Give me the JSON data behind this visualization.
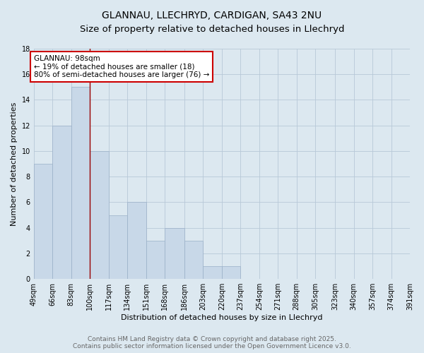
{
  "title_line1": "GLANNAU, LLECHRYD, CARDIGAN, SA43 2NU",
  "title_line2": "Size of property relative to detached houses in Llechryd",
  "xlabel": "Distribution of detached houses by size in Llechryd",
  "ylabel": "Number of detached properties",
  "bin_edges": [
    49,
    66,
    83,
    100,
    117,
    134,
    151,
    168,
    186,
    203,
    220,
    237,
    254,
    271,
    288,
    305,
    323,
    340,
    357,
    374,
    391
  ],
  "counts": [
    9,
    12,
    15,
    10,
    5,
    6,
    3,
    4,
    3,
    1,
    1,
    0,
    0,
    0,
    0,
    0,
    0,
    0,
    0,
    0
  ],
  "bar_color": "#c8d8e8",
  "bar_edge_color": "#9ab0c8",
  "grid_color": "#b8c8d8",
  "background_color": "#dce8f0",
  "vline_x": 100,
  "vline_color": "#990000",
  "annotation_text": "GLANNAU: 98sqm\n← 19% of detached houses are smaller (18)\n80% of semi-detached houses are larger (76) →",
  "annotation_box_color": "white",
  "annotation_box_edge": "#cc0000",
  "ylim": [
    0,
    18
  ],
  "yticks": [
    0,
    2,
    4,
    6,
    8,
    10,
    12,
    14,
    16,
    18
  ],
  "tick_labels": [
    "49sqm",
    "66sqm",
    "83sqm",
    "100sqm",
    "117sqm",
    "134sqm",
    "151sqm",
    "168sqm",
    "186sqm",
    "203sqm",
    "220sqm",
    "237sqm",
    "254sqm",
    "271sqm",
    "288sqm",
    "305sqm",
    "323sqm",
    "340sqm",
    "357sqm",
    "374sqm",
    "391sqm"
  ],
  "footer_text": "Contains HM Land Registry data © Crown copyright and database right 2025.\nContains public sector information licensed under the Open Government Licence v3.0.",
  "title_fontsize": 10,
  "axis_label_fontsize": 8,
  "tick_fontsize": 7,
  "footer_fontsize": 6.5,
  "annotation_fontsize": 7.5
}
